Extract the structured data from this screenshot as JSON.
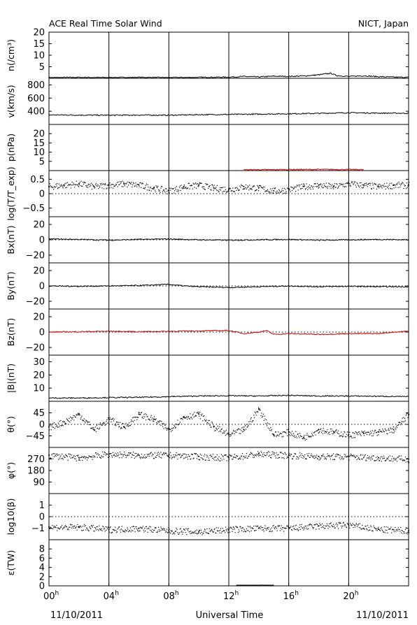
{
  "header": {
    "title": "ACE Real Time Solar Wind",
    "source": "NICT, Japan"
  },
  "footer": {
    "date_left": "11/10/2011",
    "xlabel": "Universal Time",
    "date_right": "11/10/2011"
  },
  "colors": {
    "axes": "#000000",
    "data": "#000000",
    "highlight": "#cc0000"
  },
  "chart_data": {
    "type": "line",
    "x_range": [
      0,
      24
    ],
    "x_unit": "hours UT",
    "x_ticks": [
      {
        "value": 0,
        "label": "00",
        "sup": "h"
      },
      {
        "value": 4,
        "label": "04",
        "sup": "h"
      },
      {
        "value": 8,
        "label": "08",
        "sup": "h"
      },
      {
        "value": 12,
        "label": "12",
        "sup": "h"
      },
      {
        "value": 16,
        "label": "16",
        "sup": "h"
      },
      {
        "value": 20,
        "label": "20",
        "sup": "h"
      }
    ],
    "grid": "vertical lines every 4 hours",
    "panels": [
      {
        "key": "n",
        "ylabel": "n(/cm³)",
        "ylim": [
          0,
          20
        ],
        "ticks": [
          {
            "v": 5,
            "l": "5"
          },
          {
            "v": 10,
            "l": "10"
          },
          {
            "v": 15,
            "l": "15"
          },
          {
            "v": 20,
            "l": "20"
          }
        ],
        "zero_line": null,
        "style": "line",
        "color": "#000000",
        "series": [
          [
            0,
            0.3
          ],
          [
            2,
            0.4
          ],
          [
            4,
            0.3
          ],
          [
            6,
            0.4
          ],
          [
            8,
            0.3
          ],
          [
            10,
            0.4
          ],
          [
            12,
            0.5
          ],
          [
            13,
            0.8
          ],
          [
            14,
            0.6
          ],
          [
            15,
            0.9
          ],
          [
            16,
            0.8
          ],
          [
            17,
            1.0
          ],
          [
            18,
            1.5
          ],
          [
            18.8,
            2.2
          ],
          [
            19.2,
            1.2
          ],
          [
            20,
            0.8
          ],
          [
            21,
            1.1
          ],
          [
            22,
            0.7
          ],
          [
            23,
            0.5
          ],
          [
            24,
            0.4
          ]
        ]
      },
      {
        "key": "v",
        "ylabel": "v(km/s)",
        "ylim": [
          200,
          900
        ],
        "ticks": [
          {
            "v": 400,
            "l": "400"
          },
          {
            "v": 600,
            "l": "600"
          },
          {
            "v": 800,
            "l": "800"
          }
        ],
        "zero_line": null,
        "style": "line",
        "color": "#000000",
        "series": [
          [
            0,
            345
          ],
          [
            2,
            342
          ],
          [
            4,
            340
          ],
          [
            6,
            342
          ],
          [
            8,
            340
          ],
          [
            10,
            348
          ],
          [
            12,
            352
          ],
          [
            14,
            356
          ],
          [
            16,
            362
          ],
          [
            18,
            368
          ],
          [
            20,
            378
          ],
          [
            22,
            372
          ],
          [
            24,
            370
          ]
        ]
      },
      {
        "key": "p",
        "ylabel": "p(nPa)",
        "ylim": [
          0,
          25
        ],
        "ticks": [
          {
            "v": 5,
            "l": "5"
          },
          {
            "v": 10,
            "l": "10"
          },
          {
            "v": 15,
            "l": "15"
          },
          {
            "v": 20,
            "l": "20"
          }
        ],
        "zero_line": null,
        "style": "line",
        "color": "#cc0000",
        "series": [
          [
            13,
            0.4
          ],
          [
            15,
            0.5
          ],
          [
            17,
            0.6
          ],
          [
            19,
            0.6
          ],
          [
            21,
            0.5
          ]
        ]
      },
      {
        "key": "temp",
        "ylabel": "log(T/T_exp)",
        "ylim": [
          -0.8,
          0.8
        ],
        "ticks": [
          {
            "v": -0.5,
            "l": "−0.5"
          },
          {
            "v": 0,
            "l": "0"
          },
          {
            "v": 0.5,
            "l": "0.5"
          }
        ],
        "zero_line": 0,
        "style": "dots",
        "color": "#000000",
        "series": [
          [
            0,
            0.25
          ],
          [
            1,
            0.3
          ],
          [
            2,
            0.35
          ],
          [
            3,
            0.25
          ],
          [
            4,
            0.3
          ],
          [
            5,
            0.35
          ],
          [
            6,
            0.3
          ],
          [
            7,
            0.2
          ],
          [
            8,
            0.1
          ],
          [
            9,
            0.25
          ],
          [
            10,
            0.3
          ],
          [
            11,
            0.2
          ],
          [
            12,
            0.15
          ],
          [
            13,
            0.25
          ],
          [
            14,
            0.2
          ],
          [
            15,
            0.1
          ],
          [
            16,
            0.15
          ],
          [
            17,
            0.25
          ],
          [
            18,
            0.3
          ],
          [
            19,
            0.25
          ],
          [
            20,
            0.35
          ],
          [
            21,
            0.3
          ],
          [
            22,
            0.25
          ],
          [
            23,
            0.3
          ],
          [
            24,
            0.3
          ]
        ]
      },
      {
        "key": "bx",
        "ylabel": "Bx(nT)",
        "ylim": [
          -30,
          30
        ],
        "ticks": [
          {
            "v": -20,
            "l": "−20"
          },
          {
            "v": 0,
            "l": "0"
          },
          {
            "v": 20,
            "l": "20"
          }
        ],
        "zero_line": 0,
        "style": "line",
        "color": "#000000",
        "series": [
          [
            0,
            1
          ],
          [
            2,
            0.5
          ],
          [
            4,
            -0.5
          ],
          [
            6,
            0.5
          ],
          [
            8,
            1
          ],
          [
            10,
            0
          ],
          [
            12,
            -0.5
          ],
          [
            14,
            0
          ],
          [
            16,
            0.5
          ],
          [
            18,
            -0.5
          ],
          [
            20,
            0
          ],
          [
            22,
            0.5
          ],
          [
            24,
            0
          ]
        ]
      },
      {
        "key": "by",
        "ylabel": "By(nT)",
        "ylim": [
          -30,
          30
        ],
        "ticks": [
          {
            "v": -20,
            "l": "−20"
          },
          {
            "v": 0,
            "l": "0"
          },
          {
            "v": 20,
            "l": "20"
          }
        ],
        "zero_line": 0,
        "style": "line",
        "color": "#000000",
        "series": [
          [
            0,
            0
          ],
          [
            2,
            -0.5
          ],
          [
            4,
            0
          ],
          [
            6,
            0.5
          ],
          [
            8,
            2
          ],
          [
            9,
            0
          ],
          [
            10,
            -1
          ],
          [
            12,
            -2
          ],
          [
            14,
            -1
          ],
          [
            16,
            0
          ],
          [
            18,
            -1
          ],
          [
            20,
            -0.5
          ],
          [
            22,
            -1
          ],
          [
            24,
            -1
          ]
        ]
      },
      {
        "key": "bz",
        "ylabel": "Bz(nT)",
        "ylim": [
          -30,
          30
        ],
        "ticks": [
          {
            "v": -20,
            "l": "−20"
          },
          {
            "v": 0,
            "l": "0"
          },
          {
            "v": 20,
            "l": "20"
          }
        ],
        "zero_line": 0,
        "style": "line",
        "color": "#cc0000",
        "series": [
          [
            0,
            0
          ],
          [
            2,
            0.5
          ],
          [
            4,
            1
          ],
          [
            6,
            0.5
          ],
          [
            8,
            1
          ],
          [
            10,
            1.5
          ],
          [
            12,
            2
          ],
          [
            13,
            -2
          ],
          [
            14,
            0
          ],
          [
            14.5,
            2
          ],
          [
            15,
            -3
          ],
          [
            16,
            -2
          ],
          [
            18,
            -3
          ],
          [
            20,
            -2
          ],
          [
            22,
            -2
          ],
          [
            23,
            0
          ],
          [
            24,
            1
          ]
        ]
      },
      {
        "key": "b",
        "ylabel": "|B|(nT)",
        "ylim": [
          0,
          35
        ],
        "ticks": [
          {
            "v": 10,
            "l": "10"
          },
          {
            "v": 20,
            "l": "20"
          },
          {
            "v": 30,
            "l": "30"
          }
        ],
        "zero_line": null,
        "style": "line",
        "color": "#000000",
        "series": [
          [
            0,
            2.5
          ],
          [
            2,
            2.5
          ],
          [
            4,
            2.8
          ],
          [
            6,
            3
          ],
          [
            8,
            3.5
          ],
          [
            10,
            4
          ],
          [
            12,
            4.2
          ],
          [
            14,
            4
          ],
          [
            16,
            4.5
          ],
          [
            18,
            4
          ],
          [
            20,
            4
          ],
          [
            22,
            3.8
          ],
          [
            24,
            3.5
          ]
        ]
      },
      {
        "key": "theta",
        "ylabel": "θ(°)",
        "ylim": [
          -90,
          90
        ],
        "ticks": [
          {
            "v": -45,
            "l": "−45"
          },
          {
            "v": 0,
            "l": "0"
          },
          {
            "v": 45,
            "l": "45"
          }
        ],
        "zero_line": 0,
        "style": "dots",
        "color": "#000000",
        "series": [
          [
            0,
            -10
          ],
          [
            1,
            10
          ],
          [
            2,
            40
          ],
          [
            3,
            -20
          ],
          [
            4,
            20
          ],
          [
            5,
            -10
          ],
          [
            6,
            40
          ],
          [
            7,
            20
          ],
          [
            8,
            -20
          ],
          [
            9,
            30
          ],
          [
            10,
            40
          ],
          [
            11,
            -10
          ],
          [
            12,
            -40
          ],
          [
            13,
            -20
          ],
          [
            14,
            60
          ],
          [
            15,
            -40
          ],
          [
            16,
            -30
          ],
          [
            17,
            -50
          ],
          [
            18,
            -20
          ],
          [
            19,
            -30
          ],
          [
            20,
            -40
          ],
          [
            21,
            -35
          ],
          [
            22,
            -30
          ],
          [
            23,
            -20
          ],
          [
            24,
            40
          ]
        ]
      },
      {
        "key": "phi",
        "ylabel": "φ(°)",
        "ylim": [
          0,
          360
        ],
        "ticks": [
          {
            "v": 90,
            "l": "90"
          },
          {
            "v": 180,
            "l": "180"
          },
          {
            "v": 270,
            "l": "270"
          }
        ],
        "zero_line": null,
        "style": "dots",
        "color": "#000000",
        "series": [
          [
            0,
            300
          ],
          [
            2,
            280
          ],
          [
            4,
            310
          ],
          [
            6,
            300
          ],
          [
            8,
            300
          ],
          [
            10,
            290
          ],
          [
            12,
            280
          ],
          [
            14,
            310
          ],
          [
            16,
            300
          ],
          [
            18,
            290
          ],
          [
            20,
            290
          ],
          [
            22,
            280
          ],
          [
            24,
            270
          ]
        ]
      },
      {
        "key": "beta",
        "ylabel": "log10(β)",
        "ylim": [
          -2,
          2
        ],
        "ticks": [
          {
            "v": -1,
            "l": "−1"
          },
          {
            "v": 0,
            "l": "0"
          },
          {
            "v": 1,
            "l": "1"
          }
        ],
        "zero_line": 0,
        "style": "dots",
        "color": "#000000",
        "series": [
          [
            0,
            -0.9
          ],
          [
            2,
            -0.9
          ],
          [
            4,
            -1.1
          ],
          [
            6,
            -1.0
          ],
          [
            8,
            -1.2
          ],
          [
            10,
            -1.3
          ],
          [
            12,
            -1.1
          ],
          [
            14,
            -1.0
          ],
          [
            16,
            -1.0
          ],
          [
            18,
            -0.8
          ],
          [
            20,
            -0.7
          ],
          [
            22,
            -1.1
          ],
          [
            24,
            -1.2
          ]
        ]
      },
      {
        "key": "eps",
        "ylabel": "ε(TW)",
        "ylim": [
          0,
          10
        ],
        "ticks": [
          {
            "v": 0,
            "l": "0"
          },
          {
            "v": 2,
            "l": "2"
          },
          {
            "v": 4,
            "l": "4"
          },
          {
            "v": 6,
            "l": "6"
          },
          {
            "v": 8,
            "l": "8"
          }
        ],
        "zero_line": null,
        "style": "line",
        "color": "#000000",
        "series": [
          [
            12.5,
            0.05
          ],
          [
            14,
            0.1
          ],
          [
            15,
            0.05
          ]
        ]
      }
    ]
  }
}
